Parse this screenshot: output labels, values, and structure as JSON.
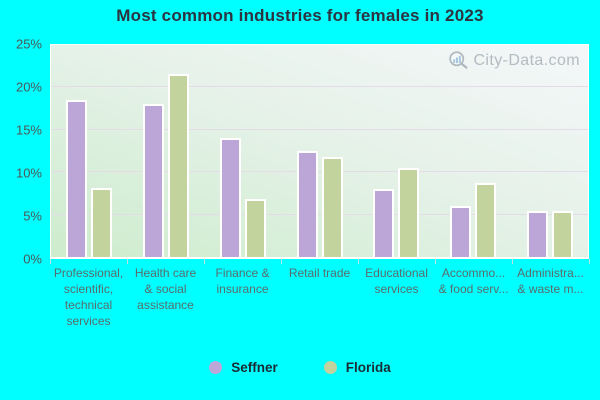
{
  "title": "Most common industries for females in 2023",
  "watermark": "City-Data.com",
  "colors": {
    "background": "#00ffff",
    "seffner_bar": "#bca6d8",
    "florida_bar": "#c2d39e",
    "bar_border": "#ffffff",
    "gridline": "#e4dae8",
    "axis_tick_text": "#4c5959",
    "category_text": "#5a6c6c",
    "title_text": "#2b3440",
    "watermark_text": "#9fa9b0"
  },
  "y_axis": {
    "ticks": [
      "25%",
      "20%",
      "15%",
      "10%",
      "5%",
      "0%"
    ]
  },
  "x_labels_lines": [
    [
      "Professional,",
      "scientific,",
      "technical",
      "services"
    ],
    [
      "Health care",
      "& social",
      "assistance"
    ],
    [
      "Finance &",
      "insurance"
    ],
    [
      "Retail trade"
    ],
    [
      "Educational",
      "services"
    ],
    [
      "Accommo...",
      "& food serv..."
    ],
    [
      "Administra...",
      "& waste m..."
    ]
  ],
  "legend": [
    {
      "name": "Seffner"
    },
    {
      "name": "Florida"
    }
  ],
  "chart_data": {
    "type": "bar",
    "title": "Most common industries for females in 2023",
    "categories": [
      "Professional, scientific, technical services",
      "Health care & social assistance",
      "Finance & insurance",
      "Retail trade",
      "Educational services",
      "Accommo... & food serv...",
      "Administra... & waste m..."
    ],
    "series": [
      {
        "name": "Seffner",
        "color": "#bca6d8",
        "values": [
          18.3,
          17.8,
          13.8,
          12.3,
          7.8,
          5.8,
          5.2
        ]
      },
      {
        "name": "Florida",
        "color": "#c2d39e",
        "values": [
          7.9,
          21.4,
          6.6,
          11.6,
          10.3,
          8.5,
          5.2
        ]
      }
    ],
    "xlabel": "",
    "ylabel": "",
    "ylim": [
      0,
      25
    ],
    "y_tick_step": 5,
    "grid": true,
    "legend_position": "bottom"
  }
}
